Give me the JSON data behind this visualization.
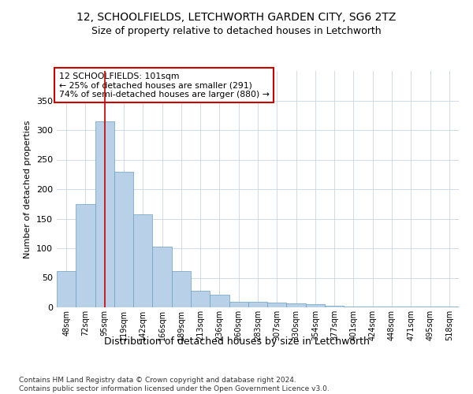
{
  "title_line1": "12, SCHOOLFIELDS, LETCHWORTH GARDEN CITY, SG6 2TZ",
  "title_line2": "Size of property relative to detached houses in Letchworth",
  "xlabel": "Distribution of detached houses by size in Letchworth",
  "ylabel": "Number of detached properties",
  "categories": [
    "48sqm",
    "72sqm",
    "95sqm",
    "119sqm",
    "142sqm",
    "166sqm",
    "189sqm",
    "213sqm",
    "236sqm",
    "260sqm",
    "283sqm",
    "307sqm",
    "330sqm",
    "354sqm",
    "377sqm",
    "401sqm",
    "424sqm",
    "448sqm",
    "471sqm",
    "495sqm",
    "518sqm"
  ],
  "values": [
    62,
    175,
    315,
    230,
    157,
    103,
    61,
    28,
    22,
    9,
    10,
    8,
    7,
    5,
    3,
    2,
    2,
    1,
    1,
    2,
    1
  ],
  "bar_color": "#b8d0e8",
  "bar_edge_color": "#6a9fc0",
  "background_color": "#ffffff",
  "grid_color": "#c8d4e4",
  "vline_x": 2.0,
  "vline_color": "#cc0000",
  "annotation_text": "12 SCHOOLFIELDS: 101sqm\n← 25% of detached houses are smaller (291)\n74% of semi-detached houses are larger (880) →",
  "annotation_box_color": "#ffffff",
  "annotation_box_edge": "#cc0000",
  "ylim": [
    0,
    400
  ],
  "yticks": [
    0,
    50,
    100,
    150,
    200,
    250,
    300,
    350
  ],
  "footnote": "Contains HM Land Registry data © Crown copyright and database right 2024.\nContains public sector information licensed under the Open Government Licence v3.0."
}
